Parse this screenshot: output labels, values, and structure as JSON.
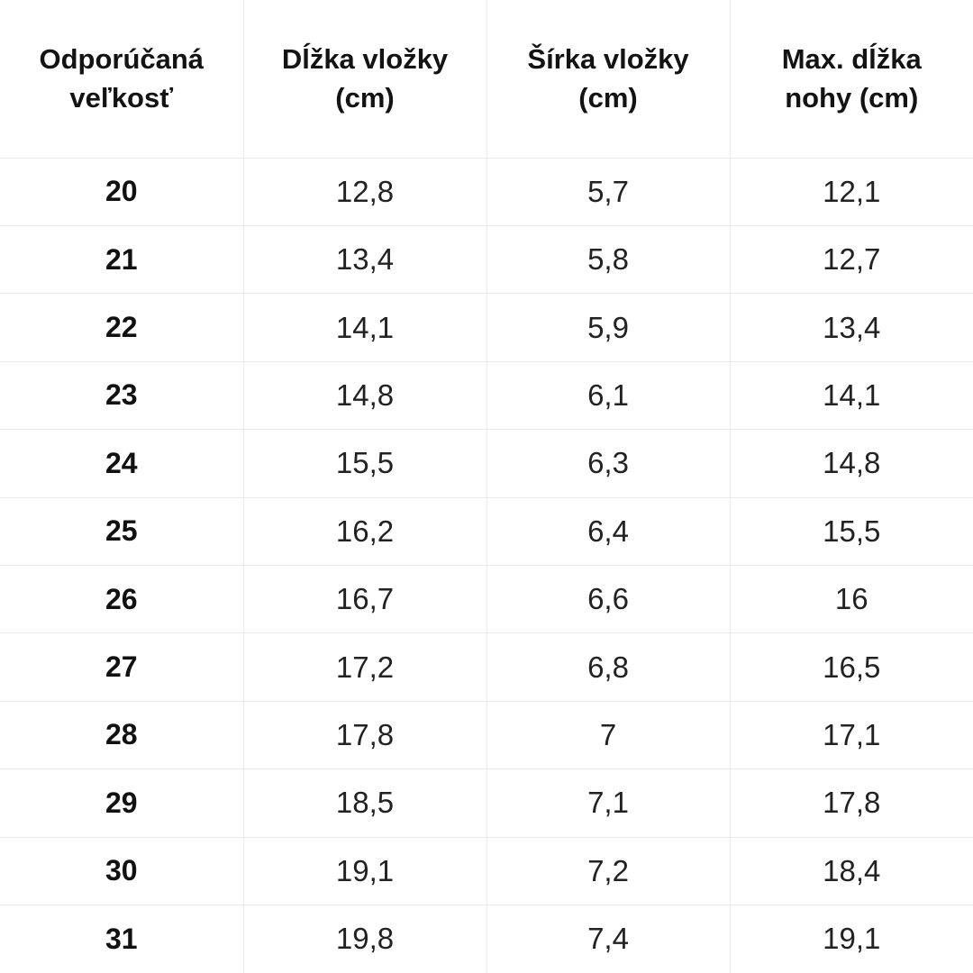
{
  "chart_data": {
    "type": "table",
    "title": "",
    "columns": [
      "Odporúčaná veľkosť",
      "Dĺžka vložky (cm)",
      "Šírka vložky (cm)",
      "Max. dĺžka nohy (cm)"
    ],
    "rows": [
      [
        "20",
        "12,8",
        "5,7",
        "12,1"
      ],
      [
        "21",
        "13,4",
        "5,8",
        "12,7"
      ],
      [
        "22",
        "14,1",
        "5,9",
        "13,4"
      ],
      [
        "23",
        "14,8",
        "6,1",
        "14,1"
      ],
      [
        "24",
        "15,5",
        "6,3",
        "14,8"
      ],
      [
        "25",
        "16,2",
        "6,4",
        "15,5"
      ],
      [
        "26",
        "16,7",
        "6,6",
        "16"
      ],
      [
        "27",
        "17,2",
        "6,8",
        "16,5"
      ],
      [
        "28",
        "17,8",
        "7",
        "17,1"
      ],
      [
        "29",
        "18,5",
        "7,1",
        "17,8"
      ],
      [
        "30",
        "19,1",
        "7,2",
        "18,4"
      ],
      [
        "31",
        "19,8",
        "7,4",
        "19,1"
      ]
    ]
  },
  "colors": {
    "border": "#ebebeb",
    "text": "#111111",
    "background": "#ffffff"
  }
}
